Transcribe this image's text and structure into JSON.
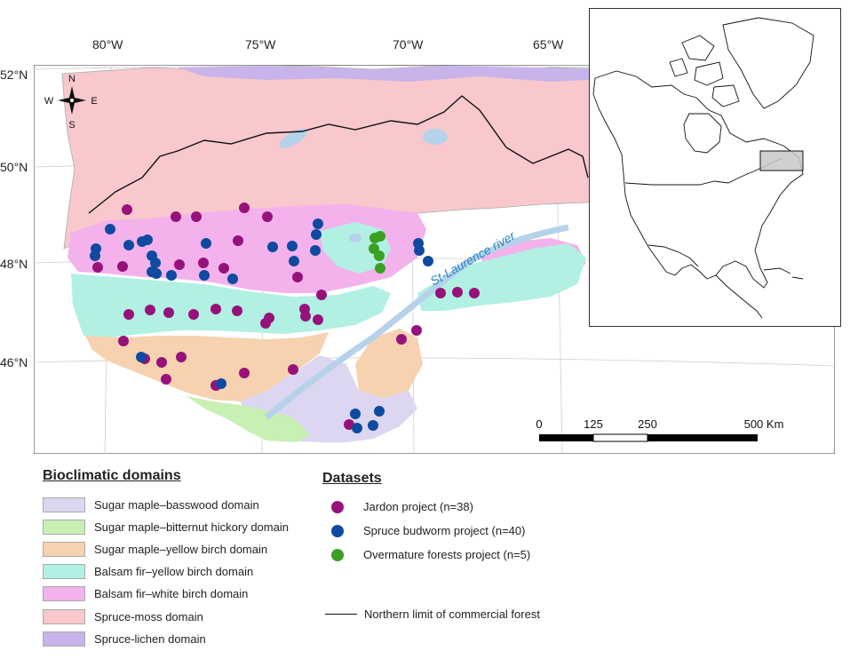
{
  "map": {
    "lon_labels": [
      "80°W",
      "75°W",
      "70°W",
      "65°W"
    ],
    "lat_labels": [
      "52°N",
      "50°N",
      "48°N",
      "46°N"
    ],
    "compass": {
      "n": "N",
      "s": "S",
      "e": "E",
      "w": "W"
    },
    "river_label": "St-Laurence river",
    "scale": {
      "ticks": [
        "0",
        "125",
        "250"
      ],
      "end_label": "500 Km"
    },
    "colors": {
      "sugar_maple_basswood": "#dcd6f0",
      "sugar_maple_bitternut": "#c8f0b4",
      "sugar_maple_yellow_birch": "#f7d2b0",
      "balsam_fir_yellow_birch": "#b2f0e4",
      "balsam_fir_white_birch": "#f3b2ec",
      "spruce_moss": "#f8c8cc",
      "spruce_lichen": "#c8b4ea",
      "water": "#b6d2ea",
      "jardon": "#96127a",
      "budworm": "#0e4aa0",
      "overmature": "#3aa022"
    }
  },
  "legend": {
    "domains_title": "Bioclimatic domains",
    "domains": [
      {
        "label": "Sugar maple–basswood domain",
        "color": "#dcd6f0"
      },
      {
        "label": "Sugar maple–bitternut hickory domain",
        "color": "#c8f0b4"
      },
      {
        "label": "Sugar maple–yellow birch domain",
        "color": "#f7d2b0"
      },
      {
        "label": "Balsam fir–yellow birch domain",
        "color": "#b2f0e4"
      },
      {
        "label": "Balsam fir–white birch domain",
        "color": "#f3b2ec"
      },
      {
        "label": "Spruce-moss domain",
        "color": "#f8c8cc"
      },
      {
        "label": "Spruce-lichen domain",
        "color": "#c8b4ea"
      }
    ],
    "datasets_title": "Datasets",
    "datasets": [
      {
        "label": "Jardon project (n=38)",
        "color": "#96127a"
      },
      {
        "label": "Spruce budworm project (n=40)",
        "color": "#0e4aa0"
      },
      {
        "label": "Overmature forests project (n=5)",
        "color": "#3aa022"
      }
    ],
    "limit_label": "Northern limit of commercial forest"
  }
}
